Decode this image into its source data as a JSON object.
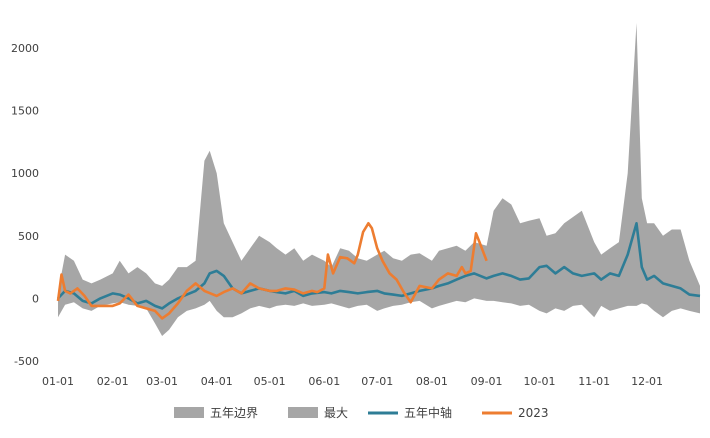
{
  "chart_data": {
    "type": "area",
    "y_ticks": [
      -500,
      0,
      500,
      1000,
      1500,
      2000
    ],
    "ylim": [
      -500,
      2250
    ],
    "x_ticks": [
      "01-01",
      "02-01",
      "03-01",
      "04-01",
      "05-01",
      "06-01",
      "07-01",
      "08-01",
      "09-01",
      "10-01",
      "11-01",
      "12-01"
    ],
    "xlim": [
      "01-01",
      "12-31"
    ],
    "grid": false,
    "legend_position": "bottom",
    "legend": [
      "五年边界",
      "最大",
      "五年中轴",
      "2023"
    ],
    "colors": {
      "band": "#a6a6a6",
      "mid": "#2e7d96",
      "y2023": "#ed7d31"
    },
    "series": [
      {
        "name": "五年边界",
        "kind": "band",
        "x": [
          "01-01",
          "01-05",
          "01-10",
          "01-15",
          "01-20",
          "01-25",
          "02-01",
          "02-05",
          "02-10",
          "02-15",
          "02-20",
          "02-25",
          "03-01",
          "03-05",
          "03-10",
          "03-15",
          "03-20",
          "03-25",
          "03-28",
          "04-01",
          "04-05",
          "04-10",
          "04-15",
          "04-20",
          "04-25",
          "05-01",
          "05-05",
          "05-10",
          "05-15",
          "05-20",
          "05-25",
          "06-01",
          "06-05",
          "06-10",
          "06-15",
          "06-20",
          "06-25",
          "07-01",
          "07-05",
          "07-10",
          "07-15",
          "07-20",
          "07-25",
          "08-01",
          "08-05",
          "08-10",
          "08-15",
          "08-20",
          "08-25",
          "09-01",
          "09-05",
          "09-10",
          "09-15",
          "09-20",
          "09-25",
          "10-01",
          "10-05",
          "10-10",
          "10-15",
          "10-20",
          "10-25",
          "11-01",
          "11-05",
          "11-10",
          "11-15",
          "11-20",
          "11-25",
          "11-28",
          "12-01",
          "12-05",
          "12-10",
          "12-15",
          "12-20",
          "12-25",
          "12-31"
        ],
        "upper": [
          50,
          350,
          300,
          150,
          120,
          150,
          200,
          300,
          200,
          250,
          200,
          120,
          100,
          150,
          250,
          250,
          300,
          1100,
          1180,
          1000,
          600,
          450,
          300,
          400,
          500,
          450,
          400,
          350,
          400,
          300,
          350,
          300,
          250,
          400,
          380,
          320,
          300,
          350,
          380,
          320,
          300,
          350,
          360,
          300,
          380,
          400,
          420,
          380,
          450,
          420,
          700,
          800,
          750,
          600,
          620,
          640,
          500,
          520,
          600,
          650,
          700,
          450,
          350,
          400,
          450,
          1000,
          2200,
          800,
          600,
          600,
          500,
          550,
          550,
          300,
          100
        ],
        "lower": [
          -150,
          -50,
          -30,
          -80,
          -100,
          -60,
          -40,
          -30,
          -50,
          -60,
          -80,
          -200,
          -300,
          -250,
          -150,
          -100,
          -80,
          -50,
          -20,
          -100,
          -150,
          -150,
          -120,
          -80,
          -60,
          -80,
          -60,
          -50,
          -60,
          -40,
          -60,
          -50,
          -40,
          -60,
          -80,
          -60,
          -50,
          -100,
          -80,
          -60,
          -50,
          -30,
          -20,
          -80,
          -60,
          -40,
          -20,
          -30,
          0,
          -20,
          -20,
          -30,
          -40,
          -60,
          -50,
          -100,
          -120,
          -80,
          -100,
          -60,
          -50,
          -150,
          -60,
          -100,
          -80,
          -60,
          -60,
          -40,
          -50,
          -100,
          -150,
          -100,
          -80,
          -100,
          -120
        ]
      },
      {
        "name": "五年中轴",
        "x": [
          "01-01",
          "01-05",
          "01-10",
          "01-15",
          "01-20",
          "01-25",
          "02-01",
          "02-05",
          "02-10",
          "02-15",
          "02-20",
          "02-25",
          "03-01",
          "03-05",
          "03-10",
          "03-15",
          "03-20",
          "03-25",
          "03-28",
          "04-01",
          "04-05",
          "04-10",
          "04-15",
          "04-20",
          "04-25",
          "05-01",
          "05-05",
          "05-10",
          "05-15",
          "05-20",
          "05-25",
          "06-01",
          "06-05",
          "06-10",
          "06-15",
          "06-20",
          "06-25",
          "07-01",
          "07-05",
          "07-10",
          "07-15",
          "07-20",
          "07-25",
          "08-01",
          "08-05",
          "08-10",
          "08-15",
          "08-20",
          "08-25",
          "09-01",
          "09-05",
          "09-10",
          "09-15",
          "09-20",
          "09-25",
          "10-01",
          "10-05",
          "10-10",
          "10-15",
          "10-20",
          "10-25",
          "11-01",
          "11-05",
          "11-10",
          "11-15",
          "11-20",
          "11-25",
          "11-28",
          "12-01",
          "12-05",
          "12-10",
          "12-15",
          "12-20",
          "12-25",
          "12-31"
        ],
        "values": [
          0,
          60,
          40,
          -20,
          -40,
          0,
          40,
          30,
          0,
          -40,
          -20,
          -60,
          -80,
          -40,
          0,
          30,
          60,
          120,
          200,
          220,
          180,
          80,
          40,
          60,
          80,
          60,
          50,
          40,
          60,
          20,
          40,
          50,
          40,
          60,
          50,
          40,
          50,
          60,
          40,
          30,
          20,
          40,
          60,
          80,
          100,
          120,
          150,
          180,
          200,
          160,
          180,
          200,
          180,
          150,
          160,
          250,
          260,
          200,
          250,
          200,
          180,
          200,
          150,
          200,
          180,
          350,
          600,
          250,
          150,
          180,
          120,
          100,
          80,
          30,
          20
        ]
      },
      {
        "name": "2023",
        "x": [
          "01-01",
          "01-03",
          "01-05",
          "01-08",
          "01-12",
          "01-16",
          "01-20",
          "01-25",
          "02-01",
          "02-05",
          "02-10",
          "02-15",
          "02-20",
          "02-25",
          "03-01",
          "03-05",
          "03-10",
          "03-15",
          "03-20",
          "03-25",
          "04-01",
          "04-05",
          "04-10",
          "04-15",
          "04-20",
          "04-25",
          "05-01",
          "05-05",
          "05-10",
          "05-15",
          "05-20",
          "05-25",
          "05-28",
          "06-01",
          "06-03",
          "06-06",
          "06-10",
          "06-14",
          "06-18",
          "06-20",
          "06-23",
          "06-26",
          "06-28",
          "07-01",
          "07-04",
          "07-08",
          "07-12",
          "07-16",
          "07-20",
          "07-25",
          "08-01",
          "08-05",
          "08-10",
          "08-15",
          "08-18",
          "08-20",
          "08-23",
          "08-26",
          "08-28",
          "09-01"
        ],
        "values": [
          -20,
          190,
          60,
          40,
          80,
          20,
          -60,
          -60,
          -60,
          -40,
          30,
          -60,
          -80,
          -100,
          -160,
          -120,
          -40,
          60,
          120,
          60,
          20,
          50,
          80,
          40,
          120,
          80,
          60,
          60,
          80,
          70,
          40,
          60,
          50,
          80,
          350,
          200,
          330,
          320,
          280,
          350,
          530,
          600,
          560,
          400,
          300,
          200,
          150,
          50,
          -30,
          100,
          80,
          150,
          200,
          180,
          250,
          200,
          220,
          520,
          450,
          300
        ]
      }
    ]
  }
}
